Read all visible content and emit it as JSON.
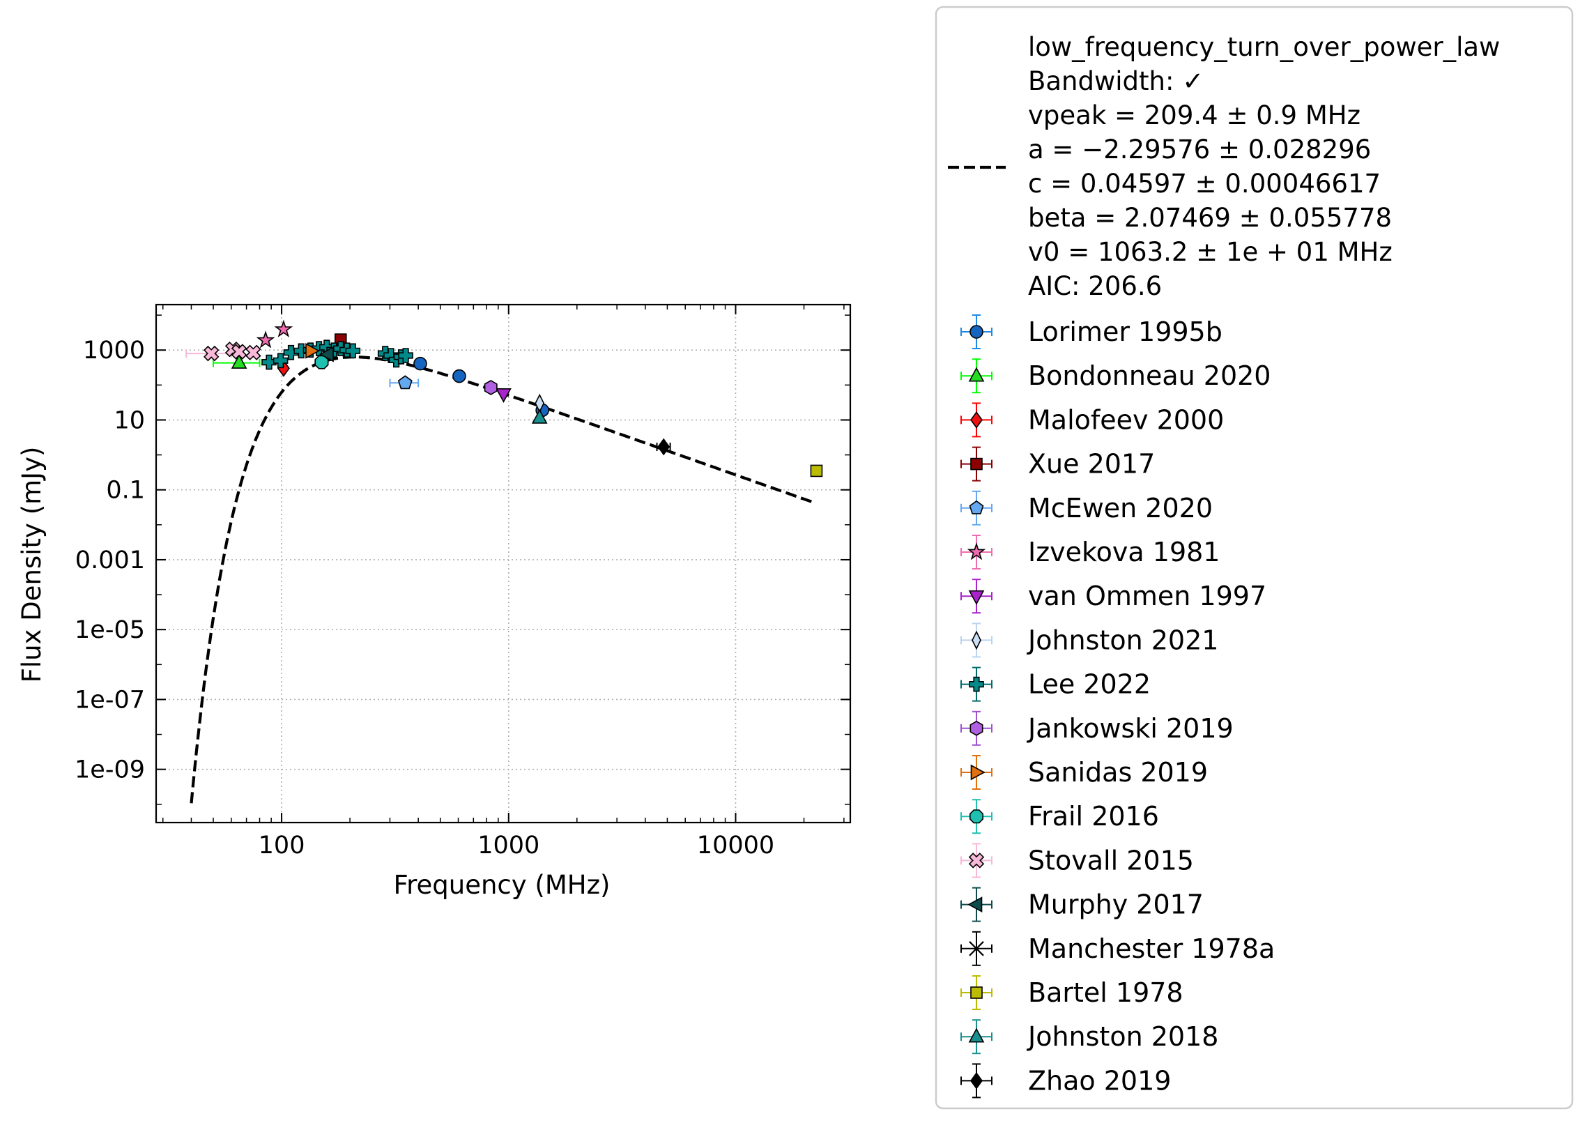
{
  "chart_data": {
    "type": "scatter",
    "xlabel": "Frequency (MHz)",
    "ylabel": "Flux Density (mJy)",
    "x_scale": "log",
    "y_scale": "log",
    "xlim": [
      28,
      32000
    ],
    "ylim": [
      3e-11,
      20000
    ],
    "grid": true,
    "legend_position": "outside-right",
    "x_ticks": [
      {
        "value": 100,
        "label": "100"
      },
      {
        "value": 1000,
        "label": "1000"
      },
      {
        "value": 10000,
        "label": "10000"
      }
    ],
    "y_ticks": [
      {
        "value": 1e-09,
        "label": "1e-09"
      },
      {
        "value": 1e-07,
        "label": "1e-07"
      },
      {
        "value": 1e-05,
        "label": "1e-05"
      },
      {
        "value": 0.001,
        "label": "0.001"
      },
      {
        "value": 0.1,
        "label": "0.1"
      },
      {
        "value": 10,
        "label": "10"
      },
      {
        "value": 1000,
        "label": "1000"
      }
    ],
    "fit": {
      "model": "low_frequency_turn_over_power_law",
      "legend_lines": [
        "low_frequency_turn_over_power_law",
        "Bandwidth: ✓",
        "vpeak = 209.4 ± 0.9 MHz",
        "a = −2.29576 ± 0.028296",
        "c = 0.04597 ± 0.00046617",
        "beta = 2.07469 ± 0.055778",
        "v0 = 1063.2 ± 1e + 01 MHz",
        "AIC: 206.6"
      ],
      "params": {
        "a": -2.29576,
        "c": 0.04597,
        "beta": 2.07469,
        "v0": 1063.2,
        "vpeak": 209.4
      },
      "x_range": [
        40,
        22000
      ],
      "color": "#000000",
      "style": "dashed"
    },
    "series": [
      {
        "name": "Lorimer 1995b",
        "marker": "circle",
        "color": "#1565C0",
        "errcolor": "#1E88E5",
        "points": [
          {
            "x": 408,
            "y": 410
          },
          {
            "x": 606,
            "y": 180
          },
          {
            "x": 1408,
            "y": 19
          }
        ]
      },
      {
        "name": "Bondonneau 2020",
        "marker": "triangle-up",
        "color": "#22DD22",
        "errcolor": "#00FF00",
        "points": [
          {
            "x": 65,
            "y": 430,
            "xlo": 50,
            "xhi": 80
          }
        ]
      },
      {
        "name": "Malofeev 2000",
        "marker": "diamond",
        "color": "#EE1111",
        "errcolor": "#FF0000",
        "points": [
          {
            "x": 102,
            "y": 300
          }
        ]
      },
      {
        "name": "Xue 2017",
        "marker": "square",
        "color": "#8B0000",
        "errcolor": "#8B0000",
        "points": [
          {
            "x": 182,
            "y": 2000
          }
        ]
      },
      {
        "name": "McEwen 2020",
        "marker": "pentagon",
        "color": "#64A8F0",
        "errcolor": "#64A8F0",
        "points": [
          {
            "x": 350,
            "y": 115,
            "xlo": 300,
            "xhi": 400
          }
        ]
      },
      {
        "name": "Izvekova 1981",
        "marker": "star",
        "color": "#F06CB0",
        "errcolor": "#F06CB0",
        "points": [
          {
            "x": 102,
            "y": 3900
          },
          {
            "x": 85,
            "y": 1900
          }
        ]
      },
      {
        "name": "van Ommen 1997",
        "marker": "triangle-down",
        "color": "#AA22CC",
        "errcolor": "#AA22CC",
        "points": [
          {
            "x": 950,
            "y": 55
          }
        ]
      },
      {
        "name": "Johnston 2021",
        "marker": "thin-diamond",
        "color": "#CCE0F5",
        "errcolor": "#BBD4F0",
        "points": [
          {
            "x": 1369,
            "y": 30
          }
        ]
      },
      {
        "name": "Lee 2022",
        "marker": "plus-filled",
        "color": "#008B8B",
        "errcolor": "#006B6B",
        "points": [
          {
            "x": 88,
            "y": 450
          },
          {
            "x": 99,
            "y": 500
          },
          {
            "x": 110,
            "y": 850
          },
          {
            "x": 122,
            "y": 950
          },
          {
            "x": 134,
            "y": 1000
          },
          {
            "x": 146,
            "y": 1100
          },
          {
            "x": 158,
            "y": 1200
          },
          {
            "x": 170,
            "y": 1000
          },
          {
            "x": 182,
            "y": 1100
          },
          {
            "x": 194,
            "y": 1000
          },
          {
            "x": 206,
            "y": 950
          },
          {
            "x": 286,
            "y": 800
          },
          {
            "x": 303,
            "y": 700
          },
          {
            "x": 320,
            "y": 520
          },
          {
            "x": 336,
            "y": 640
          },
          {
            "x": 352,
            "y": 700
          }
        ]
      },
      {
        "name": "Jankowski 2019",
        "marker": "hexagon",
        "color": "#B060E0",
        "errcolor": "#A050D0",
        "points": [
          {
            "x": 835,
            "y": 85
          }
        ]
      },
      {
        "name": "Sanidas 2019",
        "marker": "triangle-right",
        "color": "#E07010",
        "errcolor": "#E07010",
        "points": [
          {
            "x": 135,
            "y": 950
          }
        ]
      },
      {
        "name": "Frail 2016",
        "marker": "octagon",
        "color": "#20C0B0",
        "errcolor": "#20C0B0",
        "points": [
          {
            "x": 150,
            "y": 450
          }
        ]
      },
      {
        "name": "Stovall 2015",
        "marker": "x-filled",
        "color": "#F8B8D8",
        "errcolor": "#F8B8D8",
        "points": [
          {
            "x": 49,
            "y": 800,
            "xlo": 38,
            "xhi": 60
          },
          {
            "x": 61,
            "y": 1050
          },
          {
            "x": 65,
            "y": 900
          },
          {
            "x": 75,
            "y": 850
          }
        ]
      },
      {
        "name": "Murphy 2017",
        "marker": "triangle-left",
        "color": "#0E4C4C",
        "errcolor": "#0E4C4C",
        "points": [
          {
            "x": 160,
            "y": 760
          }
        ]
      },
      {
        "name": "Manchester 1978a",
        "marker": "thin-x",
        "color": "#000000",
        "errcolor": "#000000",
        "points": []
      },
      {
        "name": "Bartel 1978",
        "marker": "square",
        "color": "#BBBB00",
        "errcolor": "#BBBB00",
        "points": [
          {
            "x": 22700,
            "y": 0.35
          }
        ]
      },
      {
        "name": "Johnston 2018",
        "marker": "triangle-up",
        "color": "#1A8F8F",
        "errcolor": "#1A8F8F",
        "points": [
          {
            "x": 1369,
            "y": 11.5
          }
        ]
      },
      {
        "name": "Zhao 2019",
        "marker": "diamond",
        "color": "#000000",
        "errcolor": "#000000",
        "points": [
          {
            "x": 4820,
            "y": 1.7,
            "xlo": 4500,
            "xhi": 5150
          }
        ]
      }
    ]
  }
}
